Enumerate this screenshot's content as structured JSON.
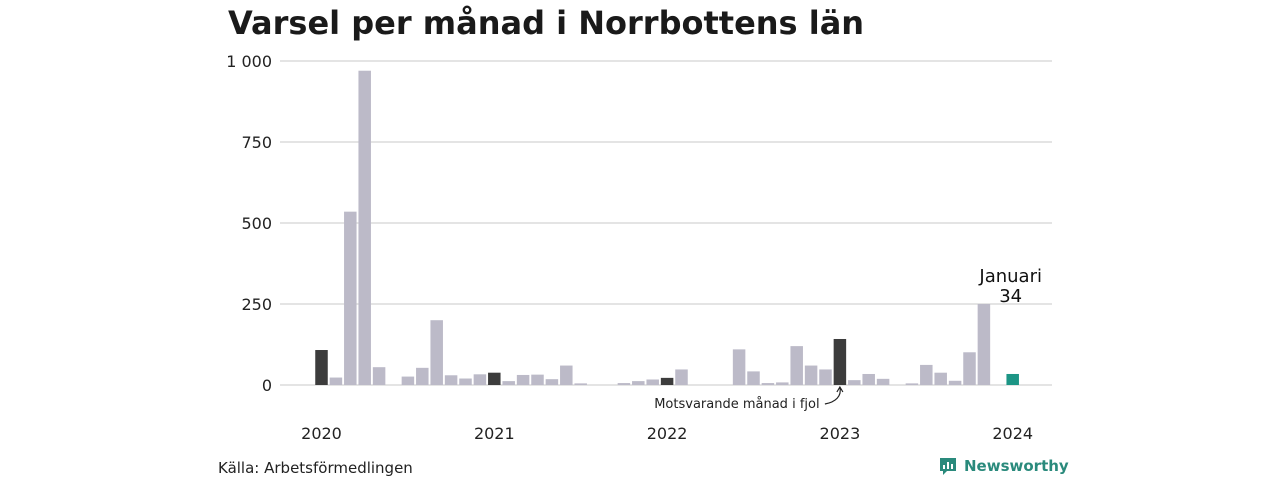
{
  "chart_data": {
    "type": "bar",
    "title": "Varsel per månad i Norrbottens län",
    "ylim": [
      0,
      1000
    ],
    "y_ticks": [
      {
        "value": 0,
        "label": "0"
      },
      {
        "value": 250,
        "label": "250"
      },
      {
        "value": 500,
        "label": "500"
      },
      {
        "value": 750,
        "label": "750"
      },
      {
        "value": 1000,
        "label": "1 000"
      }
    ],
    "x_labels": [
      "2020",
      "2021",
      "2022",
      "2023",
      "2024"
    ],
    "grid": true,
    "months": [
      {
        "month": "2020-01",
        "value": 108,
        "type": "same_month_previous_years"
      },
      {
        "month": "2020-02",
        "value": 23,
        "type": "normal"
      },
      {
        "month": "2020-03",
        "value": 535,
        "type": "normal"
      },
      {
        "month": "2020-04",
        "value": 970,
        "type": "normal"
      },
      {
        "month": "2020-05",
        "value": 55,
        "type": "normal"
      },
      {
        "month": "2020-06",
        "value": 0,
        "type": "normal"
      },
      {
        "month": "2020-07",
        "value": 26,
        "type": "normal"
      },
      {
        "month": "2020-08",
        "value": 53,
        "type": "normal"
      },
      {
        "month": "2020-09",
        "value": 200,
        "type": "normal"
      },
      {
        "month": "2020-10",
        "value": 30,
        "type": "normal"
      },
      {
        "month": "2020-11",
        "value": 20,
        "type": "normal"
      },
      {
        "month": "2020-12",
        "value": 33,
        "type": "normal"
      },
      {
        "month": "2021-01",
        "value": 38,
        "type": "same_month_previous_years"
      },
      {
        "month": "2021-02",
        "value": 12,
        "type": "normal"
      },
      {
        "month": "2021-03",
        "value": 31,
        "type": "normal"
      },
      {
        "month": "2021-04",
        "value": 32,
        "type": "normal"
      },
      {
        "month": "2021-05",
        "value": 18,
        "type": "normal"
      },
      {
        "month": "2021-06",
        "value": 60,
        "type": "normal"
      },
      {
        "month": "2021-07",
        "value": 5,
        "type": "normal"
      },
      {
        "month": "2021-08",
        "value": 0,
        "type": "normal"
      },
      {
        "month": "2021-09",
        "value": 0,
        "type": "normal"
      },
      {
        "month": "2021-10",
        "value": 6,
        "type": "normal"
      },
      {
        "month": "2021-11",
        "value": 12,
        "type": "normal"
      },
      {
        "month": "2021-12",
        "value": 17,
        "type": "normal"
      },
      {
        "month": "2022-01",
        "value": 22,
        "type": "same_month_previous_years"
      },
      {
        "month": "2022-02",
        "value": 48,
        "type": "normal"
      },
      {
        "month": "2022-03",
        "value": 0,
        "type": "normal"
      },
      {
        "month": "2022-04",
        "value": 0,
        "type": "normal"
      },
      {
        "month": "2022-05",
        "value": 0,
        "type": "normal"
      },
      {
        "month": "2022-06",
        "value": 110,
        "type": "normal"
      },
      {
        "month": "2022-07",
        "value": 42,
        "type": "normal"
      },
      {
        "month": "2022-08",
        "value": 6,
        "type": "normal"
      },
      {
        "month": "2022-09",
        "value": 8,
        "type": "normal"
      },
      {
        "month": "2022-10",
        "value": 120,
        "type": "normal"
      },
      {
        "month": "2022-11",
        "value": 60,
        "type": "normal"
      },
      {
        "month": "2022-12",
        "value": 48,
        "type": "normal"
      },
      {
        "month": "2023-01",
        "value": 142,
        "type": "same_month_previous_years"
      },
      {
        "month": "2023-02",
        "value": 15,
        "type": "normal"
      },
      {
        "month": "2023-03",
        "value": 34,
        "type": "normal"
      },
      {
        "month": "2023-04",
        "value": 19,
        "type": "normal"
      },
      {
        "month": "2023-05",
        "value": 0,
        "type": "normal"
      },
      {
        "month": "2023-06",
        "value": 5,
        "type": "normal"
      },
      {
        "month": "2023-07",
        "value": 62,
        "type": "normal"
      },
      {
        "month": "2023-08",
        "value": 38,
        "type": "normal"
      },
      {
        "month": "2023-09",
        "value": 13,
        "type": "normal"
      },
      {
        "month": "2023-10",
        "value": 101,
        "type": "normal"
      },
      {
        "month": "2023-11",
        "value": 250,
        "type": "normal"
      },
      {
        "month": "2023-12",
        "value": 0,
        "type": "normal"
      },
      {
        "month": "2024-01",
        "value": 34,
        "type": "current"
      }
    ],
    "annotation": "Motsvarande månad i fjol",
    "callout": {
      "label": "Januari",
      "value": "34"
    },
    "colors": {
      "normal": "#bcbac8",
      "same_month_previous_years": "#3c3c3c",
      "current": "#1c9585",
      "grid": "#dcdcdc"
    }
  },
  "footer": {
    "source": "Källa: Arbetsförmedlingen",
    "brand": "Newsworthy",
    "brand_color": "#2a8a7c",
    "brand_icon": "chart-speech-bubble-icon"
  }
}
